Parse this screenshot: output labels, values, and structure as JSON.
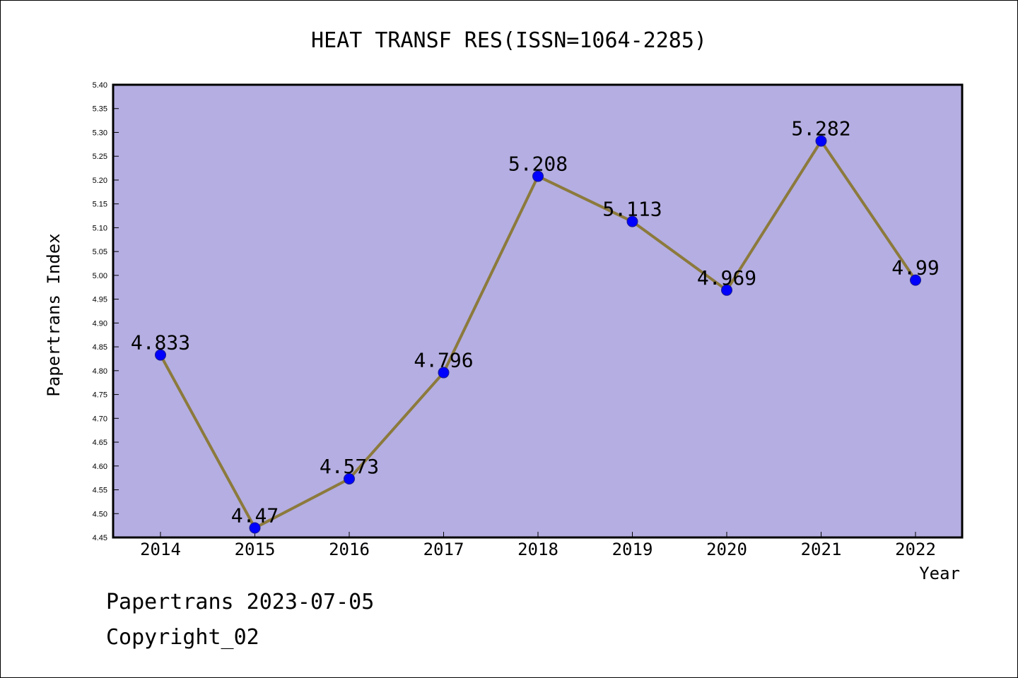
{
  "chart_data": {
    "type": "line",
    "title": "HEAT TRANSF RES(ISSN=1064-2285)",
    "xlabel": "Year",
    "ylabel": "Papertrans Index",
    "x": [
      "2014",
      "2015",
      "2016",
      "2017",
      "2018",
      "2019",
      "2020",
      "2021",
      "2022"
    ],
    "series": [
      {
        "values": [
          4.833,
          4.47,
          4.573,
          4.796,
          5.208,
          5.113,
          4.969,
          5.282,
          4.99
        ],
        "labels": [
          "4.833",
          "4.47",
          "4.573",
          "4.796",
          "5.208",
          "5.113",
          "4.969",
          "5.282",
          "4.99"
        ]
      }
    ],
    "ylim": [
      4.45,
      5.4
    ],
    "yticks": [
      "4.45",
      "4.50",
      "4.55",
      "4.60",
      "4.65",
      "4.70",
      "4.75",
      "4.80",
      "4.85",
      "4.90",
      "4.95",
      "5.00",
      "5.05",
      "5.10",
      "5.15",
      "5.20",
      "5.25",
      "5.30",
      "5.35",
      "5.40"
    ],
    "grid": false,
    "colors": {
      "plot_background": "#b4aee2",
      "line": "#8c7a3c",
      "marker": "#0000ff"
    }
  },
  "footer": {
    "date_line": "Papertrans 2023-07-05",
    "copyright": "Copyright_02"
  }
}
